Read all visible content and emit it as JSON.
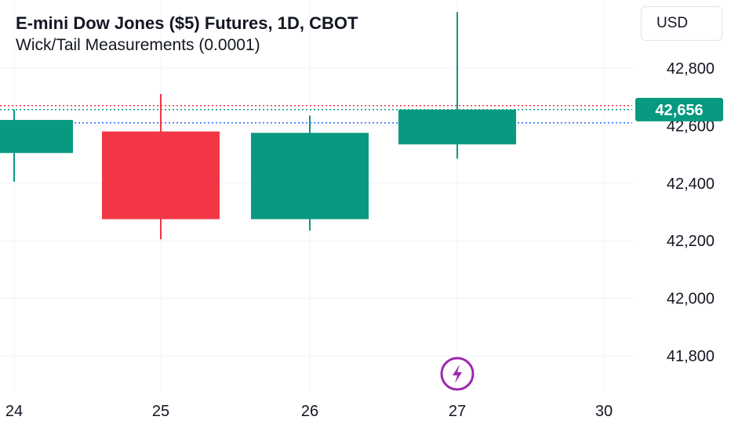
{
  "legend": {
    "title": "E-mini Dow Jones ($5) Futures, 1D, CBOT",
    "indicator": "Wick/Tail Measurements (0.0001)"
  },
  "currency": "USD",
  "colors": {
    "up": "#089981",
    "down": "#f23645",
    "grid": "#f0f3fa",
    "last_price_line": "#089981",
    "red_line": "#f23645",
    "blue_line": "#2962ff",
    "event_icon": "#9c27b0"
  },
  "chart_data": {
    "type": "candlestick",
    "title": "E-mini Dow Jones ($5) Futures, 1D, CBOT",
    "ylim": [
      41700,
      43000
    ],
    "y_ticks": [
      41800,
      42000,
      42200,
      42400,
      42600,
      42800
    ],
    "y_tick_labels": [
      "41,800",
      "42,000",
      "42,200",
      "42,400",
      "42,600",
      "42,800"
    ],
    "x_ticks": [
      "24",
      "25",
      "26",
      "27",
      "30"
    ],
    "candles": [
      {
        "date": "24",
        "open": 42505,
        "high": 42656,
        "low": 42405,
        "close": 42620
      },
      {
        "date": "25",
        "open": 42580,
        "high": 42710,
        "low": 42205,
        "close": 42275
      },
      {
        "date": "26",
        "open": 42275,
        "high": 42635,
        "low": 42235,
        "close": 42575
      },
      {
        "date": "27",
        "open": 42535,
        "high": 42995,
        "low": 42485,
        "close": 42656
      }
    ],
    "last_price": 42656,
    "last_price_label": "42,656",
    "dotted_levels": [
      {
        "value": 42670,
        "color": "red"
      },
      {
        "value": 42656,
        "color": "green"
      },
      {
        "value": 42610,
        "color": "blue"
      }
    ],
    "events": [
      {
        "date": "27",
        "icon": "lightning-icon"
      }
    ]
  }
}
